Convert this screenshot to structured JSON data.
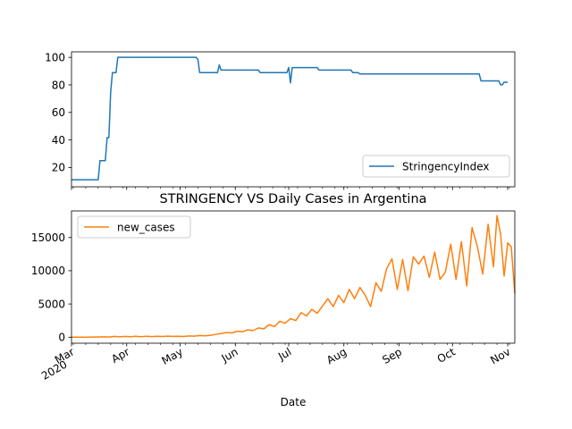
{
  "chart_data": [
    {
      "type": "line",
      "title": "",
      "xlabel": "",
      "ylabel": "",
      "legend_position": "lower right",
      "yticks": [
        20,
        40,
        60,
        80,
        100
      ],
      "ylim": [
        6,
        104
      ],
      "color": "#1f77b4",
      "series": [
        {
          "name": "StringencyIndex",
          "points": [
            [
              "2020-03-01",
              11.11
            ],
            [
              "2020-03-16",
              11.11
            ],
            [
              "2020-03-17",
              25
            ],
            [
              "2020-03-20",
              25
            ],
            [
              "2020-03-21",
              41.67
            ],
            [
              "2020-03-22",
              41.67
            ],
            [
              "2020-03-23",
              75
            ],
            [
              "2020-03-24",
              88.89
            ],
            [
              "2020-03-26",
              88.89
            ],
            [
              "2020-03-27",
              100
            ],
            [
              "2020-05-10",
              100
            ],
            [
              "2020-05-11",
              98.5
            ],
            [
              "2020-05-12",
              88.89
            ],
            [
              "2020-05-22",
              88.89
            ],
            [
              "2020-05-23",
              94.44
            ],
            [
              "2020-05-24",
              90.74
            ],
            [
              "2020-06-14",
              90.74
            ],
            [
              "2020-06-15",
              88.89
            ],
            [
              "2020-06-30",
              88.89
            ],
            [
              "2020-07-01",
              92.59
            ],
            [
              "2020-07-02",
              81.48
            ],
            [
              "2020-07-03",
              92.59
            ],
            [
              "2020-07-17",
              92.59
            ],
            [
              "2020-07-18",
              90.74
            ],
            [
              "2020-08-05",
              90.74
            ],
            [
              "2020-08-06",
              88.89
            ],
            [
              "2020-08-09",
              88.89
            ],
            [
              "2020-08-10",
              87.96
            ],
            [
              "2020-10-16",
              87.96
            ],
            [
              "2020-10-17",
              82.87
            ],
            [
              "2020-10-27",
              82.87
            ],
            [
              "2020-10-28",
              80.09
            ],
            [
              "2020-10-29",
              80.09
            ],
            [
              "2020-10-30",
              81.94
            ],
            [
              "2020-11-01",
              81.94
            ]
          ]
        }
      ]
    },
    {
      "type": "line",
      "title": "STRINGENCY VS Daily Cases in Argentina",
      "xlabel": "Date",
      "ylabel": "",
      "legend_position": "upper left",
      "yticks": [
        0,
        5000,
        10000,
        15000
      ],
      "ytick_labels": [
        "0",
        "5000",
        "10000",
        "15000"
      ],
      "ylim": [
        -900,
        19000
      ],
      "color": "#ff7f0e",
      "series": [
        {
          "name": "new_cases",
          "points": [
            [
              "2020-03-01",
              0
            ],
            [
              "2020-03-10",
              5
            ],
            [
              "2020-03-20",
              60
            ],
            [
              "2020-03-22",
              30
            ],
            [
              "2020-03-25",
              120
            ],
            [
              "2020-03-28",
              60
            ],
            [
              "2020-03-31",
              130
            ],
            [
              "2020-04-03",
              80
            ],
            [
              "2020-04-06",
              140
            ],
            [
              "2020-04-09",
              70
            ],
            [
              "2020-04-12",
              150
            ],
            [
              "2020-04-15",
              90
            ],
            [
              "2020-04-18",
              140
            ],
            [
              "2020-04-21",
              110
            ],
            [
              "2020-04-24",
              160
            ],
            [
              "2020-04-27",
              120
            ],
            [
              "2020-04-30",
              150
            ],
            [
              "2020-05-03",
              110
            ],
            [
              "2020-05-06",
              200
            ],
            [
              "2020-05-09",
              160
            ],
            [
              "2020-05-12",
              260
            ],
            [
              "2020-05-15",
              210
            ],
            [
              "2020-05-18",
              300
            ],
            [
              "2020-05-21",
              420
            ],
            [
              "2020-05-24",
              560
            ],
            [
              "2020-05-27",
              700
            ],
            [
              "2020-05-30",
              640
            ],
            [
              "2020-06-02",
              900
            ],
            [
              "2020-06-05",
              820
            ],
            [
              "2020-06-08",
              1100
            ],
            [
              "2020-06-11",
              1000
            ],
            [
              "2020-06-14",
              1400
            ],
            [
              "2020-06-17",
              1250
            ],
            [
              "2020-06-20",
              1900
            ],
            [
              "2020-06-23",
              1600
            ],
            [
              "2020-06-26",
              2400
            ],
            [
              "2020-06-29",
              2100
            ],
            [
              "2020-07-02",
              2800
            ],
            [
              "2020-07-05",
              2500
            ],
            [
              "2020-07-08",
              3700
            ],
            [
              "2020-07-11",
              3200
            ],
            [
              "2020-07-14",
              4200
            ],
            [
              "2020-07-17",
              3600
            ],
            [
              "2020-07-20",
              4700
            ],
            [
              "2020-07-23",
              5800
            ],
            [
              "2020-07-26",
              4600
            ],
            [
              "2020-07-29",
              6300
            ],
            [
              "2020-08-01",
              5200
            ],
            [
              "2020-08-04",
              7200
            ],
            [
              "2020-08-07",
              5800
            ],
            [
              "2020-08-10",
              7500
            ],
            [
              "2020-08-13",
              6300
            ],
            [
              "2020-08-16",
              4600
            ],
            [
              "2020-08-19",
              8200
            ],
            [
              "2020-08-22",
              6900
            ],
            [
              "2020-08-25",
              10300
            ],
            [
              "2020-08-28",
              11800
            ],
            [
              "2020-08-31",
              7200
            ],
            [
              "2020-09-03",
              11700
            ],
            [
              "2020-09-06",
              7000
            ],
            [
              "2020-09-09",
              12100
            ],
            [
              "2020-09-12",
              11000
            ],
            [
              "2020-09-15",
              12200
            ],
            [
              "2020-09-18",
              9000
            ],
            [
              "2020-09-21",
              12800
            ],
            [
              "2020-09-24",
              8700
            ],
            [
              "2020-09-27",
              9800
            ],
            [
              "2020-09-30",
              14000
            ],
            [
              "2020-10-03",
              8700
            ],
            [
              "2020-10-06",
              14400
            ],
            [
              "2020-10-09",
              7700
            ],
            [
              "2020-10-12",
              16500
            ],
            [
              "2020-10-15",
              13600
            ],
            [
              "2020-10-18",
              9500
            ],
            [
              "2020-10-21",
              17000
            ],
            [
              "2020-10-24",
              10600
            ],
            [
              "2020-10-26",
              18300
            ],
            [
              "2020-10-28",
              15600
            ],
            [
              "2020-10-30",
              9200
            ],
            [
              "2020-11-01",
              14200
            ],
            [
              "2020-11-03",
              13600
            ],
            [
              "2020-11-05",
              6600
            ]
          ]
        }
      ]
    }
  ],
  "x_axis": {
    "range": [
      "2020-03-01",
      "2020-11-05"
    ],
    "ticks": [
      {
        "date": "2020-03-01",
        "label": "Mar",
        "sublabel": "2020"
      },
      {
        "date": "2020-04-01",
        "label": "Apr",
        "sublabel": ""
      },
      {
        "date": "2020-05-01",
        "label": "May",
        "sublabel": ""
      },
      {
        "date": "2020-06-01",
        "label": "Jun",
        "sublabel": ""
      },
      {
        "date": "2020-07-01",
        "label": "Jul",
        "sublabel": ""
      },
      {
        "date": "2020-08-01",
        "label": "Aug",
        "sublabel": ""
      },
      {
        "date": "2020-09-01",
        "label": "Sep",
        "sublabel": ""
      },
      {
        "date": "2020-10-01",
        "label": "Oct",
        "sublabel": ""
      },
      {
        "date": "2020-11-01",
        "label": "Nov",
        "sublabel": ""
      }
    ],
    "minor_ticks_weekly": true
  }
}
